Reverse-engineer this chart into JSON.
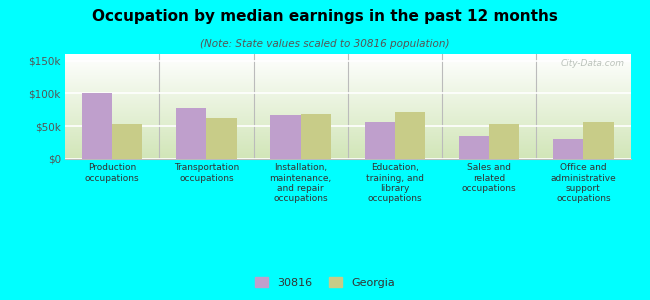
{
  "title": "Occupation by median earnings in the past 12 months",
  "subtitle": "(Note: State values scaled to 30816 population)",
  "background_color": "#00FFFF",
  "plot_bg_top_left": "#f0f8e8",
  "plot_bg_top_right": "#e8f5e0",
  "plot_bg_bottom": "#c8dca8",
  "categories": [
    "Production\noccupations",
    "Transportation\noccupations",
    "Installation,\nmaintenance,\nand repair\noccupations",
    "Education,\ntraining, and\nlibrary\noccupations",
    "Sales and\nrelated\noccupations",
    "Office and\nadministrative\nsupport\noccupations"
  ],
  "values_30816": [
    101000,
    78000,
    67000,
    57000,
    35000,
    31000
  ],
  "values_georgia": [
    53000,
    63000,
    68000,
    72000,
    53000,
    57000
  ],
  "color_30816": "#bf9fcc",
  "color_georgia": "#c8cc88",
  "ylim": [
    0,
    160000
  ],
  "yticks": [
    0,
    50000,
    100000,
    150000
  ],
  "legend_30816": "30816",
  "legend_georgia": "Georgia",
  "watermark": "City-Data.com"
}
